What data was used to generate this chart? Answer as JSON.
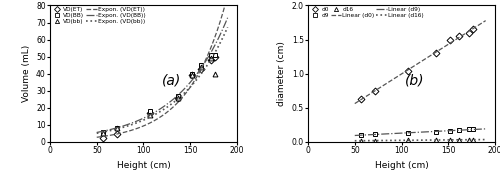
{
  "panel_a": {
    "VD_ET": {
      "x": [
        57,
        72,
        107,
        137,
        152,
        162,
        172,
        177
      ],
      "y": [
        2.5,
        4.5,
        17,
        26,
        39,
        43,
        48,
        50
      ]
    },
    "VD_BB": {
      "x": [
        57,
        72,
        107,
        137,
        152,
        162,
        172,
        177
      ],
      "y": [
        6,
        8,
        18,
        27,
        40,
        45,
        51,
        51
      ]
    },
    "VD_bb": {
      "x": [
        57,
        72,
        107,
        137,
        152,
        162,
        172,
        177
      ],
      "y": [
        5,
        8,
        16,
        26,
        39,
        44,
        49,
        40
      ]
    },
    "xlabel": "Height (cm)",
    "ylabel": "Volume (mL)",
    "xlim": [
      0,
      200
    ],
    "ylim": [
      0,
      80
    ],
    "xticks": [
      0,
      50,
      100,
      150,
      200
    ],
    "yticks": [
      0,
      10,
      20,
      30,
      40,
      50,
      60,
      70,
      80
    ],
    "label": "(a)"
  },
  "panel_b": {
    "d0": {
      "x": [
        57,
        72,
        107,
        137,
        152,
        162,
        172,
        177
      ],
      "y": [
        0.63,
        0.75,
        1.04,
        1.3,
        1.5,
        1.55,
        1.6,
        1.65
      ]
    },
    "d9": {
      "x": [
        57,
        72,
        107,
        137,
        152,
        162,
        172,
        177
      ],
      "y": [
        0.1,
        0.12,
        0.13,
        0.14,
        0.16,
        0.17,
        0.19,
        0.19
      ]
    },
    "d16": {
      "x": [
        57,
        72,
        107,
        137,
        152,
        162,
        172,
        177
      ],
      "y": [
        0.02,
        0.02,
        0.025,
        0.025,
        0.03,
        0.03,
        0.035,
        0.035
      ]
    },
    "xlabel": "Height (cm)",
    "ylabel": "diameter (cm)",
    "xlim": [
      0,
      200
    ],
    "ylim": [
      0,
      2
    ],
    "xticks": [
      0,
      50,
      100,
      150,
      200
    ],
    "yticks": [
      0,
      0.5,
      1.0,
      1.5,
      2.0
    ],
    "label": "(b)"
  },
  "line_color": "#555555",
  "bg_color": "#ffffff",
  "figsize": [
    5.0,
    1.82
  ],
  "dpi": 100
}
